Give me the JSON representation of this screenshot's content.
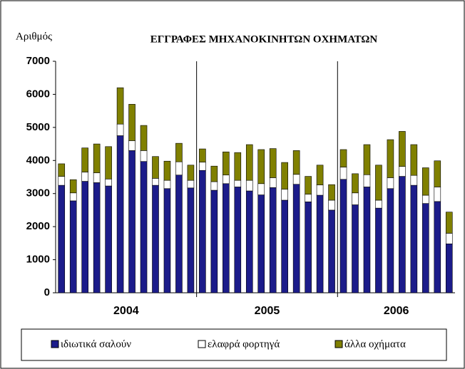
{
  "chart_data": {
    "type": "stacked-bar",
    "title": "ΕΓΓΡΑΦΕΣ ΜΗΧΑΝΟΚΙΝΗΤΩΝ ΟΧΗΜΑΤΩΝ",
    "y_label": "Αριθμός",
    "categories": [
      null,
      null,
      null,
      null,
      null,
      null,
      null,
      null,
      null,
      null,
      null,
      null,
      null,
      null,
      null,
      null,
      null,
      null,
      null,
      null,
      null,
      null,
      null,
      null,
      null,
      null,
      null,
      null,
      null,
      null,
      null,
      null,
      null,
      null
    ],
    "year_groups": [
      {
        "label": "2004",
        "months": 12
      },
      {
        "label": "2005",
        "months": 12
      },
      {
        "label": "2006",
        "months": 10
      }
    ],
    "ylim": [
      0,
      7000
    ],
    "yticks": [
      0,
      1000,
      2000,
      3000,
      4000,
      5000,
      6000,
      7000
    ],
    "grid": false,
    "series": [
      {
        "name": "ιδιωτικά σαλούν",
        "color": "#1c1c8a",
        "values": [
          3250,
          2780,
          3370,
          3330,
          3230,
          4750,
          4300,
          3970,
          3250,
          3150,
          3560,
          3170,
          3700,
          3100,
          3300,
          3200,
          3080,
          2960,
          3180,
          2800,
          3280,
          2750,
          2950,
          2500,
          3430,
          2660,
          3200,
          2560,
          3150,
          3520,
          3250,
          2700,
          2760,
          1480
        ]
      },
      {
        "name": "ελαφρά φορτηγά",
        "color": "#ffffff",
        "values": [
          270,
          240,
          280,
          300,
          210,
          350,
          300,
          330,
          210,
          250,
          400,
          230,
          250,
          260,
          260,
          200,
          320,
          340,
          300,
          330,
          300,
          230,
          310,
          300,
          370,
          360,
          370,
          240,
          330,
          300,
          300,
          250,
          440,
          320
        ]
      },
      {
        "name": "άλλα οχήματα",
        "color": "#808000",
        "values": [
          380,
          400,
          730,
          870,
          980,
          1100,
          1100,
          760,
          660,
          580,
          560,
          460,
          400,
          470,
          700,
          840,
          1080,
          1030,
          880,
          810,
          720,
          540,
          600,
          470,
          530,
          580,
          910,
          1060,
          1150,
          1060,
          930,
          830,
          790,
          640
        ]
      }
    ]
  }
}
